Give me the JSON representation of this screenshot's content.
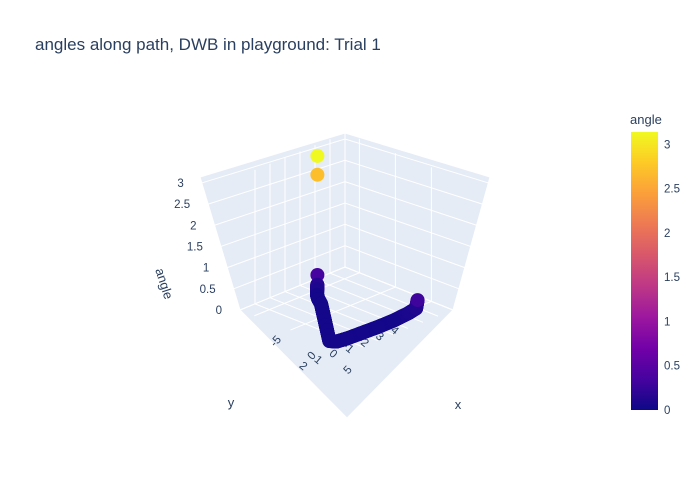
{
  "chart_data": {
    "type": "scatter",
    "title": "angles along path, DWB in playground: Trial 1",
    "axes": {
      "x": {
        "label": "x",
        "ticks": [
          "-5",
          "0",
          "5"
        ]
      },
      "y": {
        "label": "y",
        "ticks": [
          "-4",
          "-3",
          "-2",
          "-1",
          "0",
          "1",
          "2"
        ]
      },
      "z": {
        "label": "angle",
        "ticks": [
          "0",
          "0.5",
          "1",
          "1.5",
          "2",
          "2.5",
          "3"
        ],
        "range": [
          0,
          3.14
        ]
      }
    },
    "colorbar": {
      "title": "angle",
      "ticks": [
        "0",
        "0.5",
        "1",
        "1.5",
        "2",
        "2.5",
        "3"
      ],
      "range": [
        0,
        3.14
      ],
      "colorscale": [
        "#0d0887",
        "#46039f",
        "#7201a8",
        "#9c179e",
        "#bd3786",
        "#d8576b",
        "#ed7953",
        "#fb9f3a",
        "#fdca26",
        "#f0f921"
      ]
    },
    "points": [
      {
        "x": -5.0,
        "y": -1.2,
        "angle": 3.14
      },
      {
        "x": -5.0,
        "y": -1.2,
        "angle": 2.7
      },
      {
        "x": -5.0,
        "y": -1.2,
        "angle": 0.35
      },
      {
        "x": -4.8,
        "y": -1.1,
        "angle": 0.15
      },
      {
        "x": -4.4,
        "y": -0.9,
        "angle": 0.1
      },
      {
        "x": -3.8,
        "y": -0.6,
        "angle": 0.05
      },
      {
        "x": -3.0,
        "y": -0.3,
        "angle": 0.05
      },
      {
        "x": -2.0,
        "y": 0.0,
        "angle": 0.05
      },
      {
        "x": -1.0,
        "y": 0.4,
        "angle": 0.05
      },
      {
        "x": 0.0,
        "y": 0.8,
        "angle": 0.05
      },
      {
        "x": 1.0,
        "y": 1.2,
        "angle": 0.05
      },
      {
        "x": 2.0,
        "y": 1.6,
        "angle": 0.05
      },
      {
        "x": 3.0,
        "y": 2.0,
        "angle": 0.05
      },
      {
        "x": 4.0,
        "y": 2.4,
        "angle": 0.05
      },
      {
        "x": 5.0,
        "y": 2.8,
        "angle": 0.05
      },
      {
        "x": 5.6,
        "y": 2.6,
        "angle": 0.05
      },
      {
        "x": 5.8,
        "y": 2.0,
        "angle": 0.05
      },
      {
        "x": 5.9,
        "y": 1.0,
        "angle": 0.05
      },
      {
        "x": 6.0,
        "y": 0.0,
        "angle": 0.05
      },
      {
        "x": 6.0,
        "y": -1.0,
        "angle": 0.05
      },
      {
        "x": 6.0,
        "y": -2.0,
        "angle": 0.08
      },
      {
        "x": 6.0,
        "y": -2.5,
        "angle": 0.12
      },
      {
        "x": 6.0,
        "y": -2.6,
        "angle": 0.3
      }
    ]
  }
}
